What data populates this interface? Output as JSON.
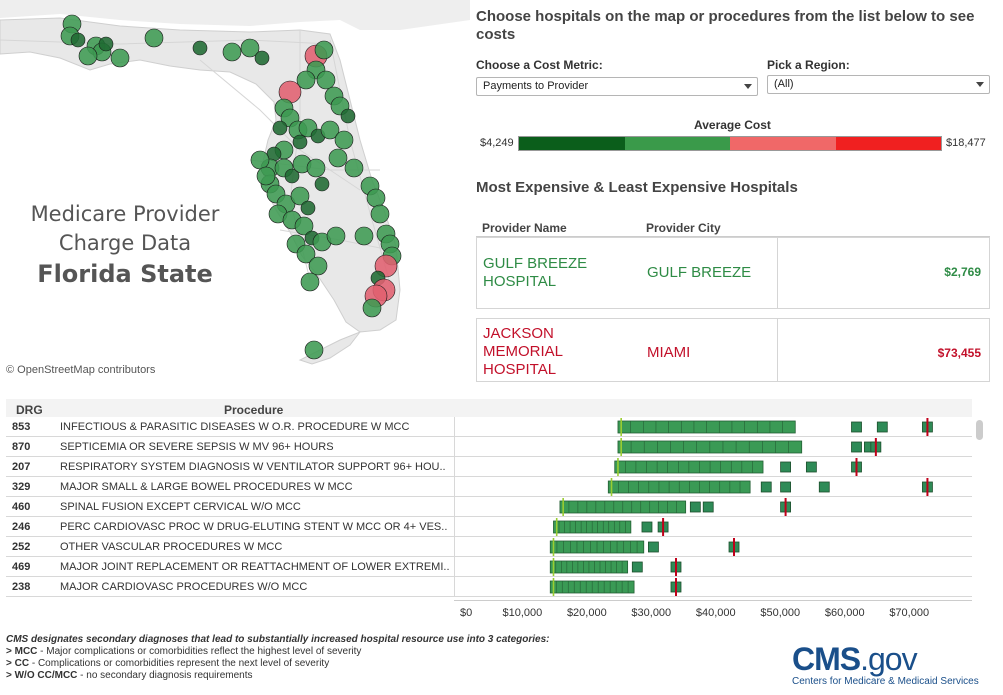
{
  "map": {
    "title_line1": "Medicare Provider",
    "title_line2": "Charge Data",
    "title_line3": "Florida State",
    "credit": "© OpenStreetMap contributors"
  },
  "controls": {
    "prompt": "Choose hospitals on the map or procedures from the list below to see costs",
    "metric_label": "Choose a Cost Metric:",
    "metric_value": "Payments to Provider",
    "region_label": "Pick a Region:",
    "region_value": "(All)"
  },
  "average_cost": {
    "label": "Average Cost",
    "min": "$4,249",
    "max": "$18,477",
    "colors": [
      "#0b5e1b",
      "#3a9a4a",
      "#f06868",
      "#f02020"
    ]
  },
  "extremes": {
    "title": "Most Expensive & Least Expensive Hospitals",
    "col_provider": "Provider Name",
    "col_city": "Provider City",
    "rows": [
      {
        "name": "GULF BREEZE HOSPITAL",
        "city": "GULF BREEZE",
        "value": "$2,769",
        "color": "#2e8b45"
      },
      {
        "name": "JACKSON MEMORIAL HOSPITAL",
        "city": "MIAMI",
        "value": "$73,455",
        "color": "#c2102a"
      }
    ]
  },
  "procedures": {
    "col_drg": "DRG",
    "col_procedure": "Procedure",
    "rows": [
      {
        "drg": "853",
        "name": "INFECTIOUS & PARASITIC DISEASES W O.R. PROCEDURE W MCC"
      },
      {
        "drg": "870",
        "name": "SEPTICEMIA OR SEVERE SEPSIS W MV 96+ HOURS"
      },
      {
        "drg": "207",
        "name": "RESPIRATORY SYSTEM DIAGNOSIS W VENTILATOR SUPPORT 96+ HOU.."
      },
      {
        "drg": "329",
        "name": "MAJOR SMALL & LARGE BOWEL PROCEDURES W MCC"
      },
      {
        "drg": "460",
        "name": "SPINAL FUSION EXCEPT CERVICAL W/O MCC"
      },
      {
        "drg": "246",
        "name": "PERC CARDIOVASC PROC W DRUG-ELUTING STENT W MCC OR 4+ VES.."
      },
      {
        "drg": "252",
        "name": "OTHER VASCULAR PROCEDURES W MCC"
      },
      {
        "drg": "469",
        "name": "MAJOR JOINT REPLACEMENT OR REATTACHMENT OF LOWER EXTREMI.."
      },
      {
        "drg": "238",
        "name": "MAJOR CARDIOVASC PROCEDURES W/O MCC"
      }
    ]
  },
  "chart_data": {
    "type": "scatter",
    "xlim": [
      0,
      76000
    ],
    "x_ticks": [
      "$0",
      "$10,000",
      "$20,000",
      "$30,000",
      "$40,000",
      "$50,000",
      "$60,000",
      "$70,000"
    ],
    "x_tick_values": [
      0,
      10000,
      20000,
      30000,
      40000,
      50000,
      60000,
      70000
    ],
    "rows": [
      {
        "drg": "853",
        "range": [
          24500,
          52000
        ],
        "outliers": [
          61500,
          65500,
          72500
        ],
        "avg": 25000,
        "max": 72500
      },
      {
        "drg": "870",
        "range": [
          24500,
          53000
        ],
        "outliers": [
          61500,
          63500,
          64500
        ],
        "avg": 25000,
        "max": 64500
      },
      {
        "drg": "207",
        "range": [
          24000,
          47000
        ],
        "outliers": [
          50500,
          54500,
          61500
        ],
        "avg": 24500,
        "max": 61500
      },
      {
        "drg": "329",
        "range": [
          23000,
          45000
        ],
        "outliers": [
          47500,
          50500,
          56500,
          72500
        ],
        "avg": 23500,
        "max": 72500
      },
      {
        "drg": "460",
        "range": [
          15500,
          35000
        ],
        "outliers": [
          36500,
          38500,
          50500
        ],
        "avg": 16000,
        "max": 50500
      },
      {
        "drg": "246",
        "range": [
          14500,
          26500
        ],
        "outliers": [
          29000,
          31500
        ],
        "avg": 15000,
        "max": 31500
      },
      {
        "drg": "252",
        "range": [
          14000,
          28500
        ],
        "outliers": [
          30000,
          42500
        ],
        "avg": 14500,
        "max": 42500
      },
      {
        "drg": "469",
        "range": [
          14000,
          26000
        ],
        "outliers": [
          27500,
          33500
        ],
        "avg": 14500,
        "max": 33500
      },
      {
        "drg": "238",
        "range": [
          14000,
          27000
        ],
        "outliers": [
          33500
        ],
        "avg": 14500,
        "max": 33500
      }
    ],
    "dot_color": "#2e8b57",
    "max_color": "#c0001a",
    "avg_color": "#9acd32"
  },
  "footnote": {
    "heading": "CMS designates secondary diagnoses that lead to substantially increased hospital resource use into 3 categories:",
    "mcc_key": "> MCC",
    "mcc_text": " - Major complications or comorbidities  reflect the highest level of severity",
    "cc_key": "> CC",
    "cc_text": " -  Complications or comorbidities represent the next level of severity",
    "wo_key": "> W/O CC/MCC",
    "wo_text": " - no secondary diagnosis requirements"
  },
  "logo": {
    "cms": "CMS",
    "gov": ".gov",
    "subtitle": "Centers for Medicare & Medicaid Services"
  },
  "map_dots": [
    [
      72,
      24,
      "g"
    ],
    [
      70,
      36,
      "g"
    ],
    [
      78,
      40,
      "d"
    ],
    [
      96,
      46,
      "g"
    ],
    [
      102,
      52,
      "g"
    ],
    [
      106,
      44,
      "d"
    ],
    [
      88,
      56,
      "g"
    ],
    [
      120,
      58,
      "g"
    ],
    [
      154,
      38,
      "g"
    ],
    [
      200,
      48,
      "d"
    ],
    [
      232,
      52,
      "g"
    ],
    [
      250,
      48,
      "g"
    ],
    [
      262,
      58,
      "d"
    ],
    [
      316,
      56,
      "r"
    ],
    [
      324,
      50,
      "g"
    ],
    [
      316,
      70,
      "g"
    ],
    [
      306,
      80,
      "g"
    ],
    [
      290,
      92,
      "r"
    ],
    [
      326,
      80,
      "g"
    ],
    [
      334,
      96,
      "g"
    ],
    [
      340,
      106,
      "g"
    ],
    [
      348,
      116,
      "d"
    ],
    [
      284,
      108,
      "g"
    ],
    [
      290,
      118,
      "g"
    ],
    [
      298,
      130,
      "g"
    ],
    [
      280,
      128,
      "d"
    ],
    [
      308,
      128,
      "g"
    ],
    [
      318,
      136,
      "d"
    ],
    [
      330,
      130,
      "g"
    ],
    [
      344,
      140,
      "g"
    ],
    [
      300,
      142,
      "d"
    ],
    [
      284,
      150,
      "g"
    ],
    [
      274,
      154,
      "d"
    ],
    [
      270,
      168,
      "g"
    ],
    [
      284,
      168,
      "g"
    ],
    [
      292,
      176,
      "d"
    ],
    [
      302,
      164,
      "g"
    ],
    [
      316,
      168,
      "g"
    ],
    [
      322,
      184,
      "d"
    ],
    [
      338,
      158,
      "g"
    ],
    [
      354,
      168,
      "g"
    ],
    [
      370,
      186,
      "g"
    ],
    [
      376,
      198,
      "g"
    ],
    [
      380,
      214,
      "g"
    ],
    [
      270,
      184,
      "g"
    ],
    [
      276,
      194,
      "g"
    ],
    [
      286,
      204,
      "g"
    ],
    [
      278,
      214,
      "g"
    ],
    [
      292,
      220,
      "g"
    ],
    [
      304,
      226,
      "g"
    ],
    [
      312,
      238,
      "d"
    ],
    [
      296,
      244,
      "g"
    ],
    [
      306,
      254,
      "g"
    ],
    [
      318,
      266,
      "g"
    ],
    [
      310,
      282,
      "g"
    ],
    [
      322,
      242,
      "g"
    ],
    [
      336,
      236,
      "g"
    ],
    [
      386,
      234,
      "g"
    ],
    [
      390,
      244,
      "g"
    ],
    [
      392,
      256,
      "g"
    ],
    [
      386,
      266,
      "r"
    ],
    [
      378,
      278,
      "d"
    ],
    [
      384,
      290,
      "r"
    ],
    [
      376,
      296,
      "r"
    ],
    [
      372,
      308,
      "g"
    ],
    [
      364,
      236,
      "g"
    ],
    [
      260,
      160,
      "g"
    ],
    [
      266,
      176,
      "g"
    ],
    [
      314,
      350,
      "g"
    ],
    [
      300,
      196,
      "g"
    ],
    [
      308,
      208,
      "d"
    ]
  ]
}
